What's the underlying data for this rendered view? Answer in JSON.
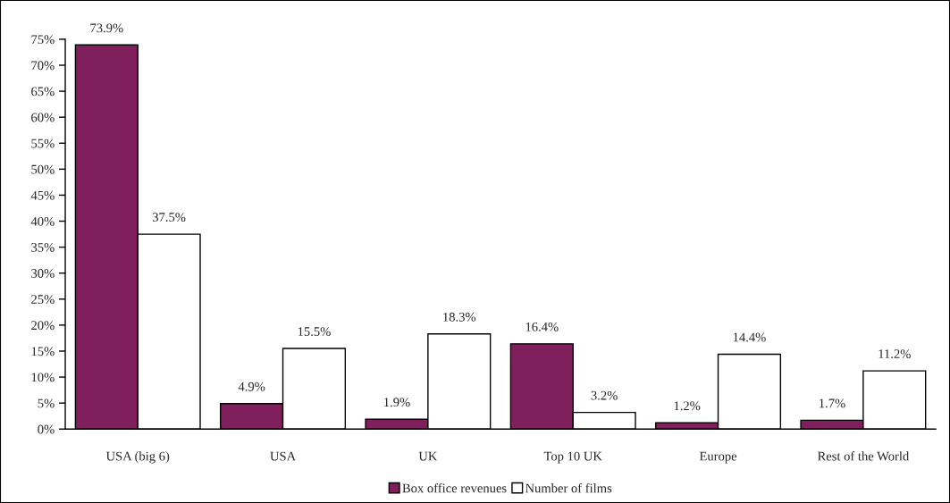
{
  "chart_data": {
    "type": "bar",
    "categories": [
      "USA (big 6)",
      "USA",
      "UK",
      "Top 10 UK",
      "Europe",
      "Rest of the World"
    ],
    "series": [
      {
        "name": "Box office revenues",
        "color": "#7f1f5c",
        "values": [
          73.9,
          4.9,
          1.9,
          16.4,
          1.2,
          1.7
        ],
        "value_labels": [
          "73.9%",
          "4.9%",
          "1.9%",
          "16.4%",
          "1.2%",
          "1.7%"
        ]
      },
      {
        "name": "Number of films",
        "color": "#ffffff",
        "values": [
          37.5,
          15.5,
          18.3,
          3.2,
          14.4,
          11.2
        ],
        "value_labels": [
          "37.5%",
          "15.5%",
          "18.3%",
          "3.2%",
          "14.4%",
          "11.2%"
        ]
      }
    ],
    "ylim": [
      0,
      75
    ],
    "yticks": [
      {
        "value": 0,
        "label": "0%"
      },
      {
        "value": 5,
        "label": "5%"
      },
      {
        "value": 10,
        "label": "10%"
      },
      {
        "value": 15,
        "label": "15%"
      },
      {
        "value": 20,
        "label": "20%"
      },
      {
        "value": 25,
        "label": "25%"
      },
      {
        "value": 30,
        "label": "30%"
      },
      {
        "value": 35,
        "label": "35%"
      },
      {
        "value": 40,
        "label": "40%"
      },
      {
        "value": 45,
        "label": "45%"
      },
      {
        "value": 50,
        "label": "50%"
      },
      {
        "value": 55,
        "label": "55%"
      },
      {
        "value": 60,
        "label": "60%"
      },
      {
        "value": 65,
        "label": "65%"
      },
      {
        "value": 70,
        "label": "70%"
      },
      {
        "value": 75,
        "label": "75%"
      }
    ],
    "grid": false,
    "legend": "bottom"
  }
}
